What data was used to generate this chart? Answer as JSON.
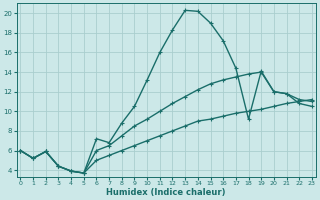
{
  "xlabel": "Humidex (Indice chaleur)",
  "background_color": "#cce8e8",
  "grid_color": "#aacece",
  "line_color": "#1a6e6a",
  "xlim": [
    -0.3,
    23.3
  ],
  "ylim": [
    3.3,
    21.0
  ],
  "xticks": [
    0,
    1,
    2,
    3,
    4,
    5,
    6,
    7,
    8,
    9,
    10,
    11,
    12,
    13,
    14,
    15,
    16,
    17,
    18,
    19,
    20,
    21,
    22,
    23
  ],
  "yticks": [
    4,
    6,
    8,
    10,
    12,
    14,
    16,
    18,
    20
  ],
  "line1_x": [
    0,
    1,
    2,
    3,
    4,
    5,
    6,
    7,
    8,
    9,
    10,
    11,
    12,
    13,
    14,
    15,
    16,
    17,
    18,
    19,
    20,
    21,
    22,
    23
  ],
  "line1_y": [
    6.0,
    5.2,
    5.9,
    4.4,
    3.9,
    3.7,
    7.2,
    6.8,
    8.8,
    10.5,
    13.2,
    16.0,
    18.3,
    20.3,
    20.2,
    19.0,
    17.2,
    14.4,
    9.2,
    14.1,
    12.0,
    11.8,
    10.8,
    10.5
  ],
  "line2_x": [
    0,
    1,
    2,
    3,
    4,
    5,
    6,
    7,
    8,
    9,
    10,
    11,
    12,
    13,
    14,
    15,
    16,
    17,
    18,
    19,
    20,
    21,
    22,
    23
  ],
  "line2_y": [
    6.0,
    5.2,
    5.9,
    4.4,
    3.9,
    3.7,
    6.0,
    6.5,
    7.5,
    8.5,
    9.2,
    10.0,
    10.8,
    11.5,
    12.2,
    12.8,
    13.2,
    13.5,
    13.8,
    14.0,
    12.0,
    11.8,
    11.2,
    11.0
  ],
  "line3_x": [
    0,
    1,
    2,
    3,
    4,
    5,
    6,
    7,
    8,
    9,
    10,
    11,
    12,
    13,
    14,
    15,
    16,
    17,
    18,
    19,
    20,
    21,
    22,
    23
  ],
  "line3_y": [
    6.0,
    5.2,
    5.9,
    4.4,
    3.9,
    3.7,
    5.0,
    5.5,
    6.0,
    6.5,
    7.0,
    7.5,
    8.0,
    8.5,
    9.0,
    9.2,
    9.5,
    9.8,
    10.0,
    10.2,
    10.5,
    10.8,
    11.0,
    11.2
  ],
  "linewidth": 1.0,
  "markersize": 3.5,
  "markeredgewidth": 0.8
}
